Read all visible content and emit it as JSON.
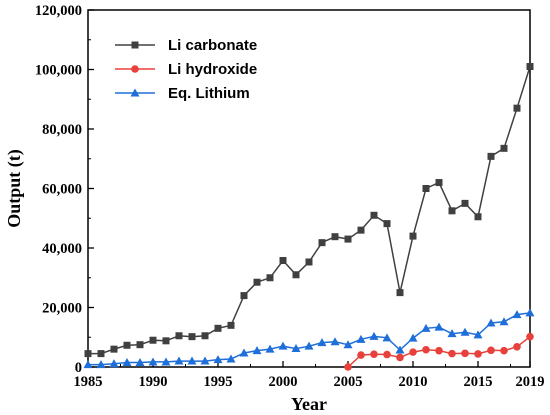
{
  "chart_data": {
    "type": "line",
    "xlabel": "Year",
    "ylabel": "Output (t)",
    "xlim": [
      1985,
      2019
    ],
    "ylim": [
      0,
      120000
    ],
    "xticks": [
      1985,
      1990,
      1995,
      2000,
      2005,
      2010,
      2015,
      2019
    ],
    "xtick_labels": [
      "1985",
      "1990",
      "1995",
      "2000",
      "2005",
      "2010",
      "2015",
      "2019"
    ],
    "yticks": [
      0,
      20000,
      40000,
      60000,
      80000,
      100000,
      120000
    ],
    "ytick_labels": [
      "0",
      "20,000",
      "40,000",
      "60,000",
      "80,000",
      "100,000",
      "120,000"
    ],
    "grid": false,
    "legend_position": "top-left",
    "series": [
      {
        "name": "Li carbonate",
        "color": "#404040",
        "marker": "square",
        "x": [
          1985,
          1986,
          1987,
          1988,
          1989,
          1990,
          1991,
          1992,
          1993,
          1994,
          1995,
          1996,
          1997,
          1998,
          1999,
          2000,
          2001,
          2002,
          2003,
          2004,
          2005,
          2006,
          2007,
          2008,
          2009,
          2010,
          2011,
          2012,
          2013,
          2014,
          2015,
          2016,
          2017,
          2018,
          2019
        ],
        "values": [
          4500,
          4500,
          6000,
          7300,
          7500,
          9000,
          8800,
          10500,
          10200,
          10500,
          13000,
          14000,
          24000,
          28500,
          30000,
          35800,
          31000,
          35300,
          41800,
          43800,
          43000,
          46000,
          51000,
          48200,
          25000,
          44000,
          60000,
          62000,
          52500,
          55000,
          50500,
          70800,
          73500,
          87000,
          101000
        ]
      },
      {
        "name": "Li hydroxide",
        "color": "#e8413c",
        "marker": "circle",
        "x": [
          2005,
          2006,
          2007,
          2008,
          2009,
          2010,
          2011,
          2012,
          2013,
          2014,
          2015,
          2016,
          2017,
          2018,
          2019
        ],
        "values": [
          0,
          4000,
          4300,
          4200,
          3200,
          5000,
          5800,
          5500,
          4500,
          4600,
          4400,
          5600,
          5500,
          6800,
          10200
        ]
      },
      {
        "name": "Eq. Lithium",
        "color": "#1e6fd9",
        "marker": "triangle",
        "x": [
          1985,
          1986,
          1987,
          1988,
          1989,
          1990,
          1991,
          1992,
          1993,
          1994,
          1995,
          1996,
          1997,
          1998,
          1999,
          2000,
          2001,
          2002,
          2003,
          2004,
          2005,
          2006,
          2007,
          2008,
          2009,
          2010,
          2011,
          2012,
          2013,
          2014,
          2015,
          2016,
          2017,
          2018,
          2019
        ],
        "values": [
          800,
          800,
          1100,
          1500,
          1500,
          1700,
          1700,
          2000,
          2000,
          2000,
          2500,
          2700,
          4700,
          5500,
          6000,
          7000,
          6200,
          7000,
          8200,
          8500,
          7500,
          9300,
          10300,
          9800,
          5700,
          9700,
          13000,
          13400,
          11200,
          11700,
          10800,
          14800,
          15200,
          17600,
          18200
        ]
      }
    ]
  }
}
